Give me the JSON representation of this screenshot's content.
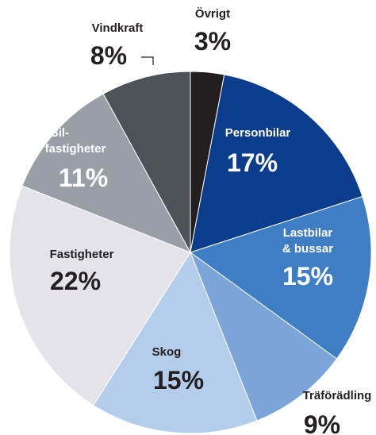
{
  "chart_data": {
    "type": "pie",
    "categories": [
      "Övrigt",
      "Personbilar",
      "Lastbilar\n& bussar",
      "Träförädling",
      "Skog",
      "Fastigheter",
      "Bil-\nfastigheter",
      "Vindkraft"
    ],
    "values": [
      3,
      17,
      15,
      9,
      15,
      22,
      11,
      8
    ],
    "value_labels": [
      "3%",
      "17%",
      "15%",
      "9%",
      "15%",
      "22%",
      "11%",
      "8%"
    ],
    "colors": [
      "#231f20",
      "#0b3d8c",
      "#3f7dc4",
      "#7ba4d9",
      "#b3cdeb",
      "#e3e3e9",
      "#9a9ea6",
      "#4d5259"
    ]
  }
}
